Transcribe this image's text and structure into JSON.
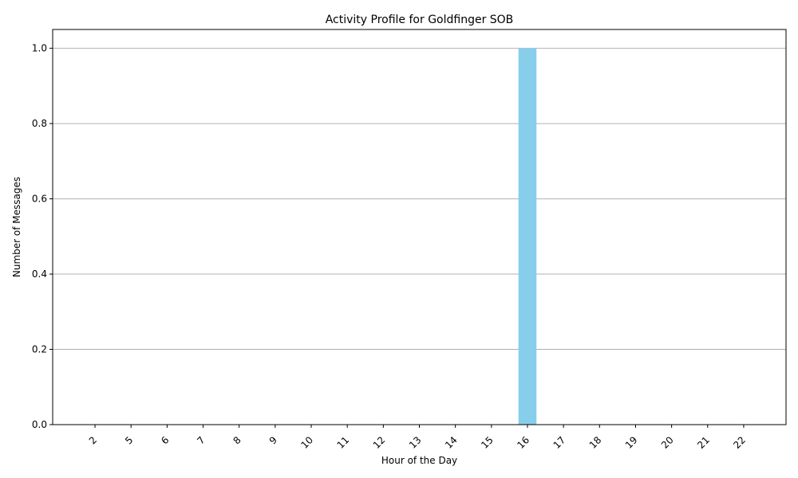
{
  "chart_data": {
    "type": "bar",
    "title": "Activity Profile for Goldfinger SOB",
    "xlabel": "Hour of the Day",
    "ylabel": "Number of Messages",
    "categories": [
      "2",
      "5",
      "6",
      "7",
      "8",
      "9",
      "10",
      "11",
      "12",
      "13",
      "14",
      "15",
      "16",
      "17",
      "18",
      "19",
      "20",
      "21",
      "22"
    ],
    "values": [
      0,
      0,
      0,
      0,
      0,
      0,
      0,
      0,
      0,
      0,
      0,
      0,
      1,
      0,
      0,
      0,
      0,
      0,
      0
    ],
    "ylim": [
      0,
      1.05
    ],
    "yticks": [
      "0.0",
      "0.2",
      "0.4",
      "0.6",
      "0.8",
      "1.0"
    ],
    "ytick_values": [
      0,
      0.2,
      0.4,
      0.6,
      0.8,
      1.0
    ],
    "grid": "y",
    "bar_color": "#87ceeb"
  }
}
